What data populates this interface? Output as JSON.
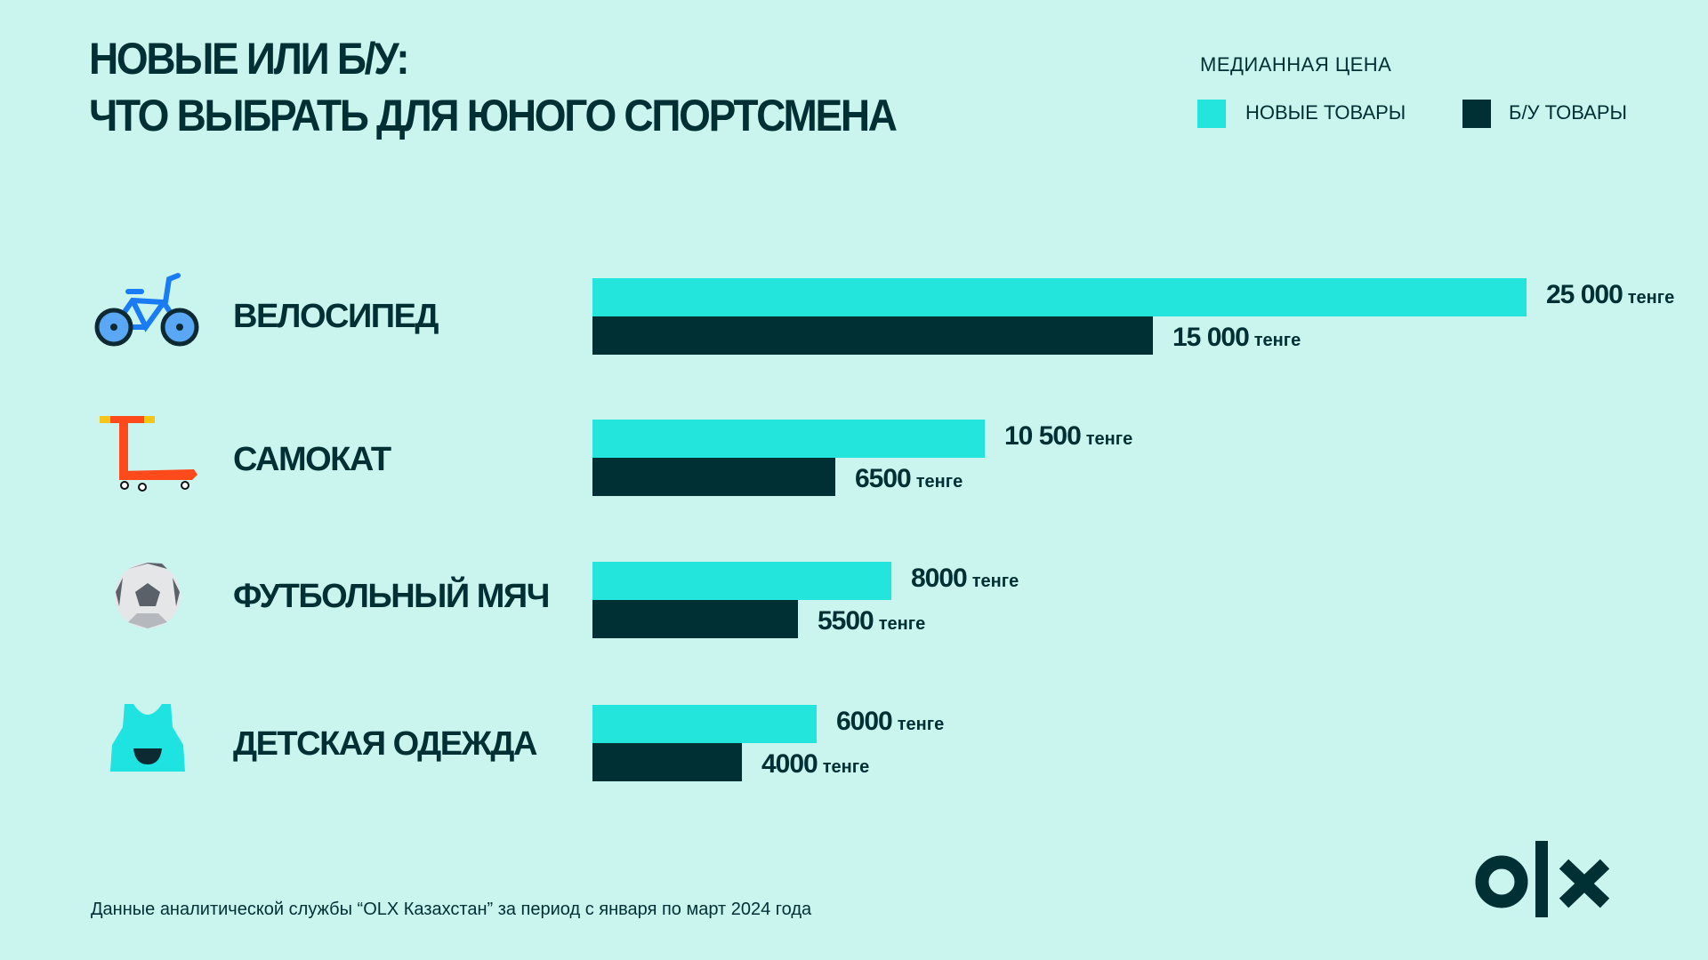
{
  "title": {
    "line1": "НОВЫЕ ИЛИ Б/У:",
    "line2": "ЧТО ВЫБРАТЬ ДЛЯ ЮНОГО СПОРТСМЕНА"
  },
  "colors": {
    "background": "#c9f5ee",
    "new": "#23e5db",
    "used": "#002f34"
  },
  "chart_data": {
    "type": "bar",
    "orientation": "horizontal",
    "title": "НОВЫЕ ИЛИ Б/У: ЧТО ВЫБРАТЬ ДЛЯ ЮНОГО СПОРТСМЕНА",
    "legend_title": "МЕДИАННАЯ ЦЕНА",
    "legend_placement": "top-right",
    "unit": "тенге",
    "categories": [
      "ВЕЛОСИПЕД",
      "САМОКАТ",
      "ФУТБОЛЬНЫЙ МЯЧ",
      "ДЕТСКАЯ ОДЕЖДА"
    ],
    "category_icons": [
      "bicycle-icon",
      "scooter-icon",
      "soccer-ball-icon",
      "kids-clothes-icon"
    ],
    "series": [
      {
        "name": "НОВЫЕ ТОВАРЫ",
        "values": [
          25000,
          10500,
          8000,
          6000
        ],
        "labels": [
          "25 000",
          "10 500",
          "8000",
          "6000"
        ]
      },
      {
        "name": "Б/У ТОВАРЫ",
        "values": [
          15000,
          6500,
          5500,
          4000
        ],
        "labels": [
          "15 000",
          "6500",
          "5500",
          "4000"
        ]
      }
    ],
    "xlim": [
      0,
      25000
    ],
    "grid": false
  },
  "footer": "Данные аналитической службы “OLX Казахстан” за период с января по март 2024 года",
  "logo": "olx"
}
